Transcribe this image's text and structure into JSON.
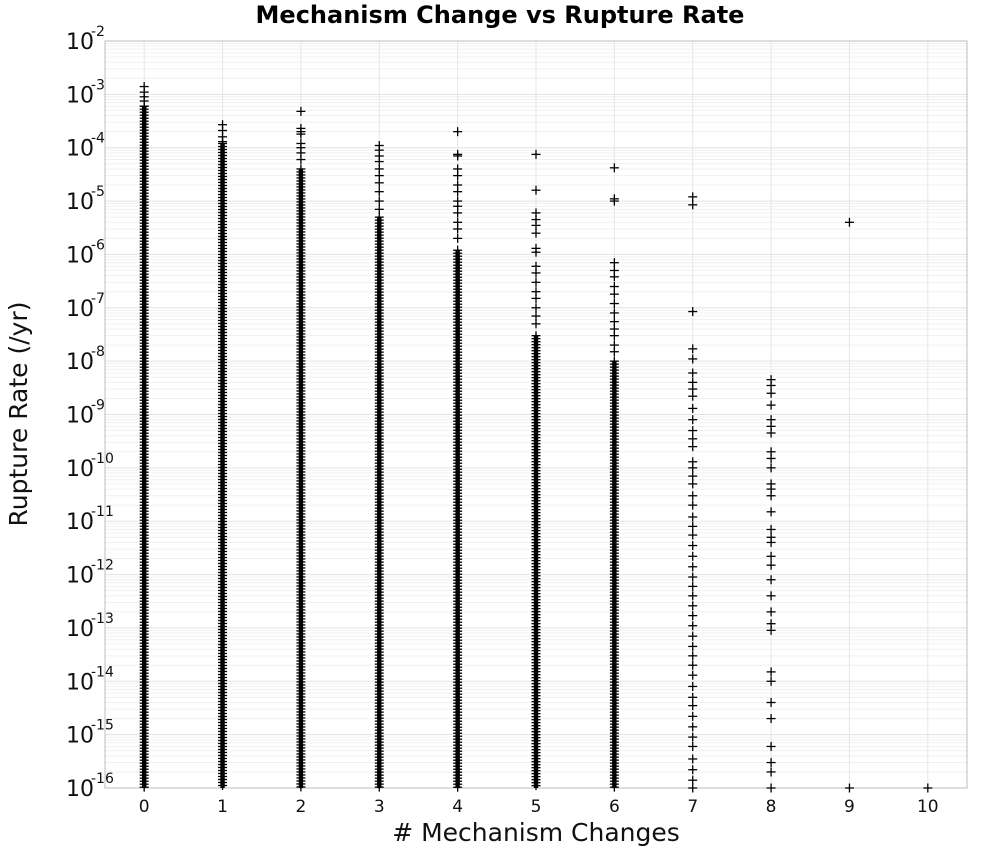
{
  "chart_data": {
    "type": "scatter",
    "title": "Mechanism Change vs Rupture Rate",
    "xlabel": "# Mechanism Changes",
    "ylabel": "Rupture Rate (/yr)",
    "xlim": [
      -0.5,
      10.5
    ],
    "ylim": [
      1e-16,
      0.01
    ],
    "yscale": "log",
    "marker": "plus",
    "marker_color": "#000000",
    "grid": true,
    "legend": "none",
    "x_ticks": [
      "0",
      "1",
      "2",
      "3",
      "4",
      "5",
      "6",
      "7",
      "8",
      "9",
      "10"
    ],
    "y_ticks": [
      {
        "base": "10",
        "exp": "-16"
      },
      {
        "base": "10",
        "exp": "-15"
      },
      {
        "base": "10",
        "exp": "-14"
      },
      {
        "base": "10",
        "exp": "-13"
      },
      {
        "base": "10",
        "exp": "-12"
      },
      {
        "base": "10",
        "exp": "-11"
      },
      {
        "base": "10",
        "exp": "-10"
      },
      {
        "base": "10",
        "exp": "-9"
      },
      {
        "base": "10",
        "exp": "-8"
      },
      {
        "base": "10",
        "exp": "-7"
      },
      {
        "base": "10",
        "exp": "-6"
      },
      {
        "base": "10",
        "exp": "-5"
      },
      {
        "base": "10",
        "exp": "-4"
      },
      {
        "base": "10",
        "exp": "-3"
      },
      {
        "base": "10",
        "exp": "-2"
      }
    ],
    "series": [
      {
        "x": 0,
        "dense_range": [
          1e-16,
          0.0006
        ],
        "points": [
          0.0014,
          0.0011,
          0.0009,
          0.00075,
          0.0006
        ]
      },
      {
        "x": 1,
        "dense_range": [
          1e-16,
          0.00012
        ],
        "points": [
          0.00027,
          0.00021,
          0.00016,
          0.00013
        ]
      },
      {
        "x": 2,
        "dense_range": [
          1e-16,
          4e-05
        ],
        "points": [
          0.00048,
          0.00023,
          0.0002,
          0.00018,
          0.00012,
          0.0001,
          8e-05,
          6e-05
        ]
      },
      {
        "x": 3,
        "dense_range": [
          1e-16,
          5e-06
        ],
        "points": [
          0.00011,
          9e-05,
          7e-05,
          5.5e-05,
          4e-05,
          3e-05,
          2.2e-05,
          1.5e-05,
          1e-05,
          7e-06
        ]
      },
      {
        "x": 4,
        "dense_range": [
          1e-16,
          1.2e-06
        ],
        "points": [
          0.0002,
          7.5e-05,
          7e-05,
          4e-05,
          3e-05,
          2e-05,
          1.5e-05,
          1e-05,
          8e-06,
          6e-06,
          4e-06,
          3e-06,
          2e-06
        ]
      },
      {
        "x": 5,
        "dense_range": [
          1e-16,
          3e-08
        ],
        "points": [
          7.5e-05,
          1.6e-05,
          6e-06,
          4.5e-06,
          3.5e-06,
          2.5e-06,
          1.3e-06,
          1.1e-06,
          6e-07,
          4.5e-07,
          3e-07,
          2e-07,
          1.5e-07,
          1e-07,
          7e-08,
          5e-08
        ]
      },
      {
        "x": 6,
        "dense_range": [
          1e-16,
          1e-08
        ],
        "points": [
          4.2e-05,
          1.1e-05,
          1e-05,
          7e-07,
          5e-07,
          3.8e-07,
          2.5e-07,
          1.8e-07,
          1.2e-07,
          8e-08,
          5.5e-08,
          4e-08,
          3e-08,
          2e-08,
          1.5e-08
        ]
      },
      {
        "x": 7,
        "points": [
          1.2e-05,
          8.5e-06,
          8.5e-08,
          1.7e-08,
          1.1e-08,
          6e-09,
          4e-09,
          3e-09,
          2.2e-09,
          1.3e-09,
          8e-10,
          5e-10,
          3.5e-10,
          2.5e-10,
          1.3e-10,
          1e-10,
          7e-11,
          5e-11,
          3e-11,
          2e-11,
          1.2e-11,
          8e-12,
          5.5e-12,
          3.5e-12,
          2.2e-12,
          1.4e-12,
          9e-13,
          6e-13,
          4e-13,
          2.6e-13,
          1.7e-13,
          1.1e-13,
          7e-14,
          4.5e-14,
          3e-14,
          2e-14,
          1.3e-14,
          8e-15,
          5e-15,
          3.5e-15,
          2.2e-15,
          1.4e-15,
          9e-16,
          6e-16,
          3.5e-16,
          2.2e-16,
          1.4e-16,
          1e-16
        ]
      },
      {
        "x": 8,
        "points": [
          4.5e-09,
          3.5e-09,
          2.5e-09,
          1.5e-09,
          8e-10,
          6e-10,
          4.5e-10,
          2e-10,
          1.5e-10,
          1e-10,
          5e-11,
          4e-11,
          3e-11,
          1.5e-11,
          7e-12,
          5e-12,
          4e-12,
          2.2e-12,
          1.5e-12,
          8e-13,
          4e-13,
          2e-13,
          1.2e-13,
          9e-14,
          1.5e-14,
          1e-14,
          4e-15,
          2e-15,
          6e-16,
          3e-16,
          2e-16,
          1e-16
        ]
      },
      {
        "x": 9,
        "points": [
          4e-06,
          1e-16
        ]
      },
      {
        "x": 10,
        "points": [
          1e-16
        ]
      }
    ]
  }
}
